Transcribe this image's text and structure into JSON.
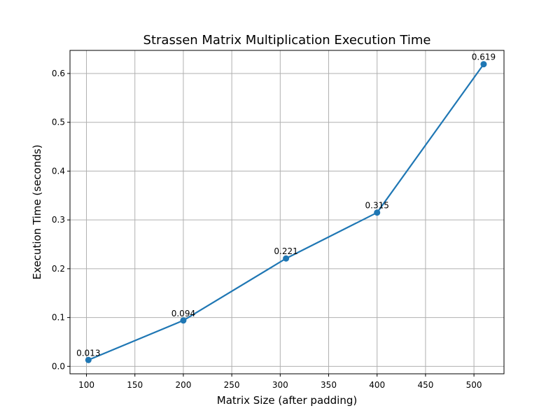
{
  "chart_data": {
    "type": "line",
    "title": "Strassen Matrix Multiplication Execution Time",
    "xlabel": "Matrix Size (after padding)",
    "ylabel": "Execution Time (seconds)",
    "xlim": [
      83,
      531
    ],
    "ylim": [
      -0.0153,
      0.6473
    ],
    "xticks": [
      100,
      150,
      200,
      250,
      300,
      350,
      400,
      450,
      500
    ],
    "yticks": [
      0.0,
      0.1,
      0.2,
      0.3,
      0.4,
      0.5,
      0.6
    ],
    "ytick_labels": [
      "0.0",
      "0.1",
      "0.2",
      "0.3",
      "0.4",
      "0.5",
      "0.6"
    ],
    "grid": true,
    "series": [
      {
        "color": "#1f77b4",
        "marker": "circle",
        "points": [
          {
            "x": 102,
            "y": 0.013,
            "label": "0.013"
          },
          {
            "x": 200,
            "y": 0.094,
            "label": "0.094"
          },
          {
            "x": 306,
            "y": 0.221,
            "label": "0.221"
          },
          {
            "x": 400,
            "y": 0.315,
            "label": "0.315"
          },
          {
            "x": 510,
            "y": 0.619,
            "label": "0.619"
          }
        ]
      }
    ]
  }
}
